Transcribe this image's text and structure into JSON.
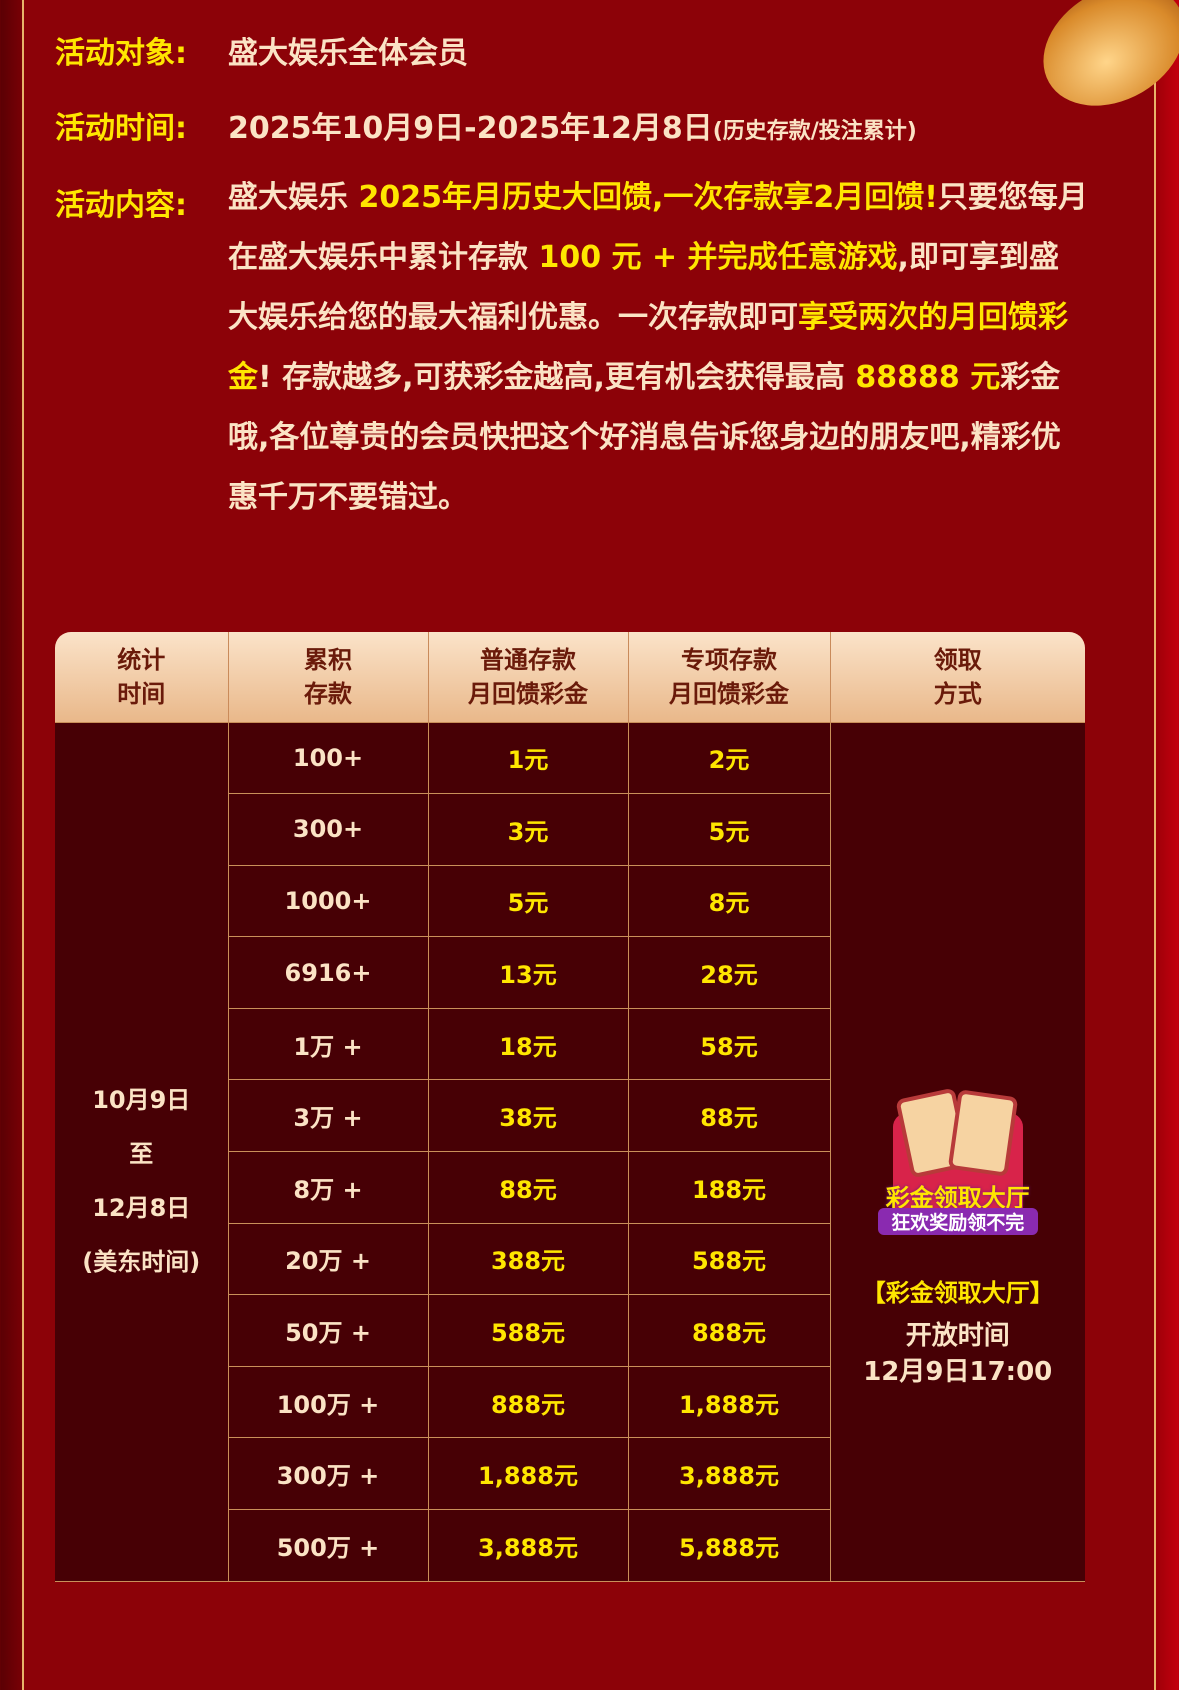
{
  "info": {
    "target_label": "活动对象:",
    "target_value": "盛大娱乐全体会员",
    "time_label": "活动时间:",
    "time_value": "2025年10月9日-2025年12月8日",
    "time_note": "(历史存款/投注累计)",
    "content_label": "活动内容:",
    "content_parts": [
      "盛大娱乐 ",
      "2025年月历史大回馈,一次存款享2月回馈!",
      "只要您每月在盛大娱乐中累计存款 ",
      "100 元 + 并完成任意游戏",
      ",即可享到盛大娱乐给您的最大福利优惠。一次存款即可",
      "享受两次的月回馈彩金",
      "! 存款越多,可获彩金越高,更有机会获得最高 ",
      "88888 元",
      "彩金哦,各位尊贵的会员快把这个好消息告诉您身边的朋友吧,精彩优惠千万不要错过。"
    ]
  },
  "table": {
    "headers": [
      "统计\n时间",
      "累积\n存款",
      "普通存款\n月回馈彩金",
      "专项存款\n月回馈彩金",
      "领取\n方式"
    ],
    "period": [
      "10月9日",
      "至",
      "12月8日",
      "(美东时间)"
    ],
    "rows": [
      [
        "100+",
        "1元",
        "2元"
      ],
      [
        "300+",
        "3元",
        "5元"
      ],
      [
        "1000+",
        "5元",
        "8元"
      ],
      [
        "6916+",
        "13元",
        "28元"
      ],
      [
        "1万 +",
        "18元",
        "58元"
      ],
      [
        "3万 +",
        "38元",
        "88元"
      ],
      [
        "8万 +",
        "88元",
        "188元"
      ],
      [
        "20万 +",
        "388元",
        "588元"
      ],
      [
        "50万 +",
        "588元",
        "888元"
      ],
      [
        "100万 +",
        "888元",
        "1,888元"
      ],
      [
        "300万 +",
        "1,888元",
        "3,888元"
      ],
      [
        "500万 +",
        "3,888元",
        "5,888元"
      ]
    ],
    "badge_title": "彩金领取大厅",
    "badge_sub": "狂欢奖励领不完",
    "hall": "【彩金领取大厅】",
    "open_label": "开放时间",
    "open_time": "12月9日17:00"
  },
  "colors": {
    "background": "#8c0208",
    "highlight": "#ffe600",
    "text": "#fbe3c5",
    "table_bg": "#470005",
    "border": "#e8b46a"
  }
}
